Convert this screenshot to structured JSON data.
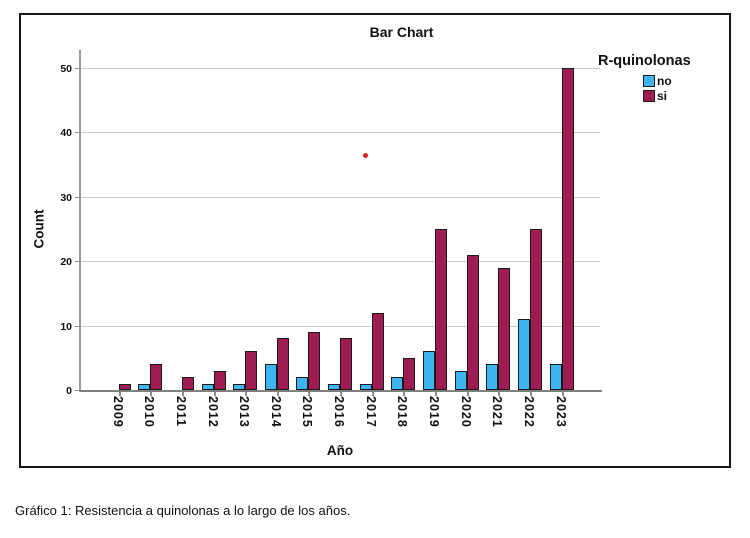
{
  "figure": {
    "caption": "Gráfico 1: Resistencia a quinolonas a lo largo de los años."
  },
  "chart_data": {
    "type": "bar",
    "title": "Bar Chart",
    "xlabel": "Año",
    "ylabel": "Count",
    "legend_title": "R-quinolonas",
    "legend_position": "top-right",
    "grid": true,
    "categories": [
      "2009",
      "2010",
      "2011",
      "2012",
      "2013",
      "2014",
      "2015",
      "2016",
      "2017",
      "2018",
      "2019",
      "2020",
      "2021",
      "2022",
      "2023"
    ],
    "series": [
      {
        "name": "no",
        "color": "#3cb5f0",
        "values": [
          0,
          1,
          0,
          1,
          1,
          4,
          2,
          1,
          1,
          2,
          6,
          3,
          4,
          11,
          4
        ]
      },
      {
        "name": "si",
        "color": "#9e1c52",
        "values": [
          1,
          4,
          2,
          3,
          6,
          8,
          9,
          8,
          12,
          5,
          25,
          21,
          19,
          25,
          50
        ]
      }
    ],
    "yticks": [
      0,
      10,
      20,
      30,
      40,
      50
    ],
    "ylim": [
      0,
      52
    ],
    "annotations": [
      {
        "type": "point",
        "x_category": "2017",
        "value": 36.5,
        "color": "#d42525"
      }
    ]
  },
  "style": {
    "bar_border": "#1a1a1a",
    "gridline_color": "#c9c9c9",
    "axis_line_color": "#8f8f8f",
    "frame_border": "#161616",
    "text_color": "#111111"
  }
}
